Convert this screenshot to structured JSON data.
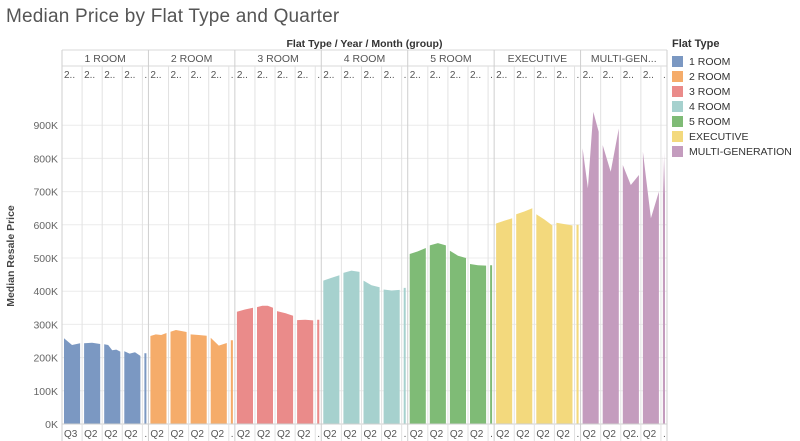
{
  "title": "Median Price by Flat Type and Quarter",
  "legend": {
    "title": "Flat Type",
    "items": [
      {
        "label": "1 ROOM",
        "color": "#7b98c2"
      },
      {
        "label": "2 ROOM",
        "color": "#f5ac6a"
      },
      {
        "label": "3 ROOM",
        "color": "#ea8b8a"
      },
      {
        "label": "4 ROOM",
        "color": "#a6d1ce"
      },
      {
        "label": "5 ROOM",
        "color": "#7fbb76"
      },
      {
        "label": "EXECUTIVE",
        "color": "#f3d97d"
      },
      {
        "label": "MULTI-GENERATION",
        "color": "#c49cbe"
      }
    ]
  },
  "chart_data": {
    "type": "area",
    "title": "Median Price by Flat Type and Quarter",
    "header_title": "Flat Type / Year / Month (group)",
    "ylabel": "Median Resale Price",
    "ylim": [
      0,
      1000000
    ],
    "yticks": [
      0,
      100000,
      200000,
      300000,
      400000,
      500000,
      600000,
      700000,
      800000,
      900000
    ],
    "ytick_labels": [
      "0K",
      "100K",
      "200K",
      "300K",
      "400K",
      "500K",
      "600K",
      "700K",
      "800K",
      "900K"
    ],
    "year_header_label": "2..",
    "panels": [
      {
        "name": "1 ROOM",
        "color": "#7b98c2",
        "year_headers": [
          "2..",
          "2..",
          "2..",
          "2..",
          "."
        ],
        "quarter_labels": [
          "Q3",
          "Q2",
          "Q2",
          "Q2",
          "."
        ],
        "years": [
          [
            258000,
            238000,
            243000
          ],
          [
            243000,
            245000,
            241000
          ],
          [
            240000,
            238000,
            222000,
            224000,
            218000
          ],
          [
            219000,
            212000,
            216000,
            205000
          ],
          [
            213000
          ]
        ]
      },
      {
        "name": "2 ROOM",
        "color": "#f5ac6a",
        "year_headers": [
          "2..",
          "2..",
          "2..",
          "2..",
          "."
        ],
        "quarter_labels": [
          "Q2",
          "Q2",
          "Q2",
          "Q2",
          "."
        ],
        "years": [
          [
            265000,
            270000,
            268000,
            274000
          ],
          [
            278000,
            283000,
            280000,
            277000
          ],
          [
            270000,
            268000,
            266000
          ],
          [
            260000,
            236000,
            244000
          ],
          [
            252000
          ]
        ]
      },
      {
        "name": "3 ROOM",
        "color": "#ea8b8a",
        "year_headers": [
          "2..",
          "2..",
          "2..",
          "2..",
          "."
        ],
        "quarter_labels": [
          "Q2",
          "Q2",
          "Q2",
          "Q2",
          "."
        ],
        "years": [
          [
            338000,
            345000,
            350000
          ],
          [
            352000,
            356000,
            356000,
            350000
          ],
          [
            340000,
            334000,
            326000
          ],
          [
            313000,
            314000,
            312000
          ],
          [
            314000
          ]
        ]
      },
      {
        "name": "4 ROOM",
        "color": "#a6d1ce",
        "year_headers": [
          "2..",
          "2..",
          "2..",
          "2..",
          "."
        ],
        "quarter_labels": [
          "Q2",
          "Q2",
          "Q2",
          "Q2",
          "."
        ],
        "years": [
          [
            432000,
            440000,
            448000
          ],
          [
            455000,
            462000,
            458000
          ],
          [
            432000,
            418000,
            412000
          ],
          [
            405000,
            402000,
            404000
          ],
          [
            410000
          ]
        ]
      },
      {
        "name": "5 ROOM",
        "color": "#7fbb76",
        "year_headers": [
          "2..",
          "2..",
          "2..",
          "2..",
          "."
        ],
        "quarter_labels": [
          "Q2",
          "Q2",
          "Q2",
          "Q2",
          "."
        ],
        "years": [
          [
            512000,
            520000,
            530000
          ],
          [
            538000,
            545000,
            538000
          ],
          [
            522000,
            507000,
            500000
          ],
          [
            482000,
            478000,
            477000
          ],
          [
            478000
          ]
        ]
      },
      {
        "name": "EXECUTIVE",
        "color": "#f3d97d",
        "year_headers": [
          "2..",
          "2..",
          "2..",
          "2..",
          "."
        ],
        "quarter_labels": [
          "Q2",
          "Q2",
          "Q2",
          "Q2",
          "."
        ],
        "years": [
          [
            604000,
            612000,
            620000
          ],
          [
            632000,
            640000,
            650000
          ],
          [
            632000,
            616000,
            598000
          ],
          [
            606000,
            602000,
            598000
          ],
          [
            600000
          ]
        ]
      },
      {
        "name": "MULTI-GENERATION",
        "display_name": "MULTI-GEN...",
        "color": "#c49cbe",
        "year_headers": [
          "2..",
          "2..",
          "2..",
          "2..",
          "."
        ],
        "quarter_labels": [
          "Q2",
          "Q2",
          "Q2.",
          "Q2",
          "."
        ],
        "years": [
          [
            830000,
            710000,
            940000,
            880000
          ],
          [
            840000,
            760000,
            890000
          ],
          [
            780000,
            720000,
            750000
          ],
          [
            820000,
            620000,
            700000
          ],
          [
            810000,
            690000,
            820000
          ]
        ]
      }
    ]
  }
}
